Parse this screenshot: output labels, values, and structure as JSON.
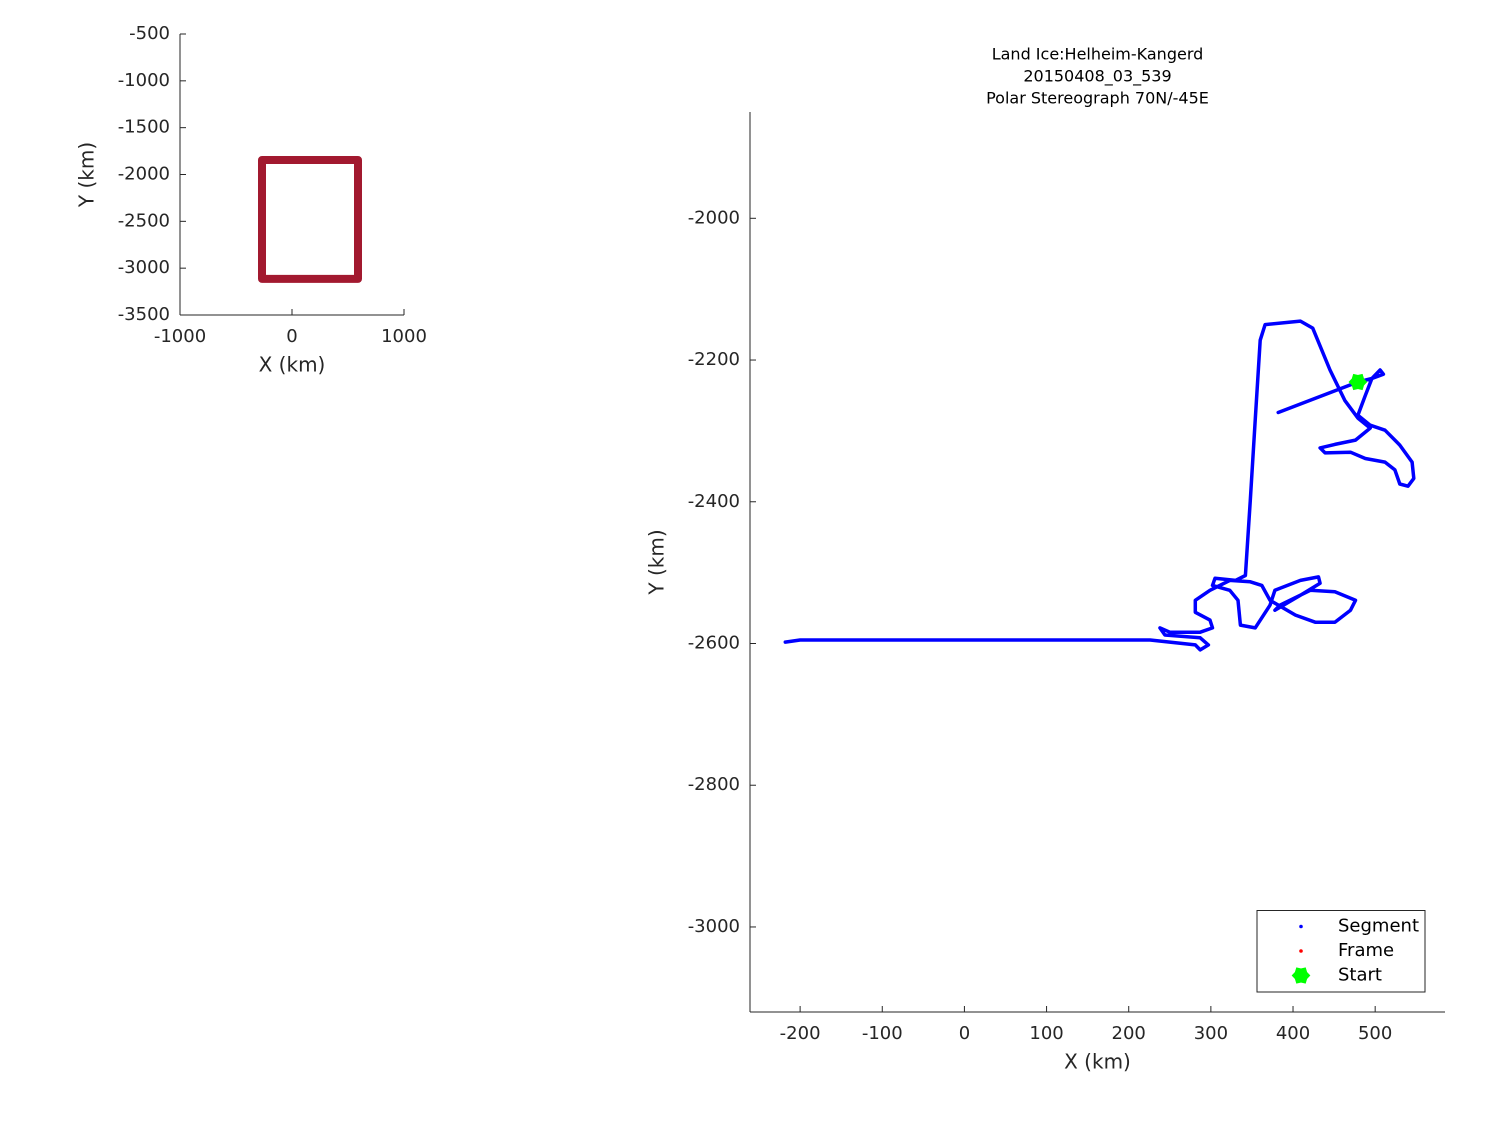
{
  "chart_data": [
    {
      "type": "line",
      "xlabel": "X (km)",
      "ylabel": "Y (km)",
      "xlim": [
        -1000,
        1000
      ],
      "xticks": [
        -1000,
        0,
        1000
      ],
      "ylim": [
        -3500,
        -500
      ],
      "yticks": [
        -3500,
        -3000,
        -2500,
        -2000,
        -1500,
        -1000,
        -500
      ],
      "series": [
        {
          "style": "line",
          "color": "#a2192f",
          "x": [
            -268,
            589,
            589,
            -268,
            -268
          ],
          "y": [
            -1845,
            -1845,
            -3115,
            -3115,
            -1845
          ]
        }
      ]
    },
    {
      "type": "line",
      "title": [
        "Land Ice:Helheim-Kangerd",
        "20150408_03_539",
        "Polar Stereograph 70N/-45E"
      ],
      "xlabel": "X (km)",
      "ylabel": "Y (km)",
      "xlim": [
        -261,
        585
      ],
      "xticks": [
        -200,
        -100,
        0,
        100,
        200,
        300,
        400,
        500
      ],
      "ylim": [
        -3120,
        -1850
      ],
      "yticks": [
        -3000,
        -2800,
        -2600,
        -2400,
        -2200,
        -2000
      ],
      "legend": "lower right",
      "series": [
        {
          "name": "Segment",
          "style": "line",
          "color": "#0000ff",
          "x": [
            382,
            479,
            496,
            506,
            510,
            496,
            488,
            479,
            494,
            512,
            530,
            545,
            547,
            540,
            530,
            524,
            512,
            488,
            470,
            439,
            433,
            451,
            476,
            494,
            479,
            463,
            445,
            424,
            409,
            366,
            360,
            354,
            348,
            342,
            330,
            305,
            302,
            323,
            333,
            336,
            354,
            372,
            378,
            409,
            431,
            433,
            409,
            378,
            384,
            421,
            451,
            476,
            470,
            451,
            427,
            403,
            372,
            362,
            348,
            323,
            299,
            281,
            281,
            299,
            302,
            287,
            250,
            238,
            244,
            287,
            297,
            287,
            281,
            226,
            165,
            -78,
            -200,
            -218
          ],
          "y": [
            -2274,
            -2231,
            -2226,
            -2214,
            -2220,
            -2226,
            -2250,
            -2278,
            -2292,
            -2299,
            -2320,
            -2344,
            -2367,
            -2378,
            -2375,
            -2355,
            -2344,
            -2339,
            -2330,
            -2331,
            -2324,
            -2319,
            -2313,
            -2296,
            -2282,
            -2257,
            -2214,
            -2155,
            -2145,
            -2150,
            -2172,
            -2285,
            -2398,
            -2504,
            -2511,
            -2508,
            -2518,
            -2525,
            -2539,
            -2574,
            -2578,
            -2546,
            -2525,
            -2511,
            -2506,
            -2515,
            -2532,
            -2553,
            -2546,
            -2525,
            -2527,
            -2539,
            -2553,
            -2570,
            -2570,
            -2560,
            -2539,
            -2518,
            -2513,
            -2511,
            -2525,
            -2539,
            -2556,
            -2567,
            -2578,
            -2584,
            -2584,
            -2578,
            -2588,
            -2592,
            -2602,
            -2609,
            -2602,
            -2595,
            -2595,
            -2595,
            -2595,
            -2598
          ]
        },
        {
          "name": "Frame",
          "style": "marker",
          "color": "#ff0000",
          "x": [],
          "y": []
        },
        {
          "name": "Start",
          "style": "marker",
          "color": "#00ff00",
          "x": [
            479
          ],
          "y": [
            -2231
          ]
        }
      ]
    }
  ]
}
